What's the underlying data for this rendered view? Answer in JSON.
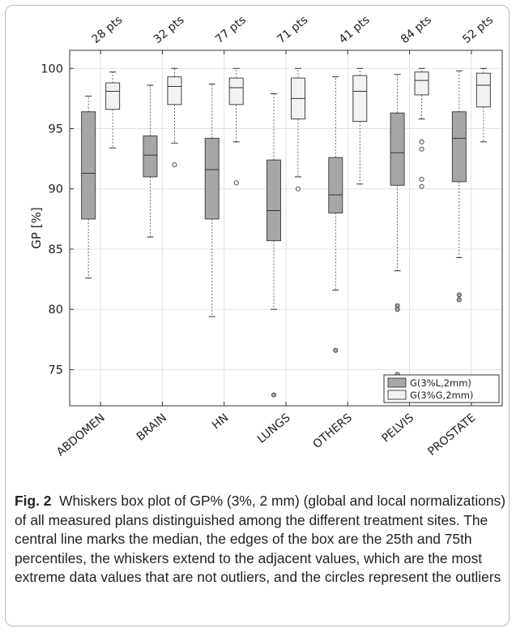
{
  "chart_data": {
    "type": "box",
    "ylabel": "GP [%]",
    "ylim": [
      72,
      101.5
    ],
    "yticks": [
      75,
      80,
      85,
      90,
      95,
      100
    ],
    "grid": true,
    "legend_position": "bottom-right",
    "categories": [
      "ABDOMEN",
      "BRAIN",
      "HN",
      "LUNGS",
      "OTHERS",
      "PELVIS",
      "PROSTATE"
    ],
    "counts": [
      "28 pts",
      "32 pts",
      "77 pts",
      "71 pts",
      "41 pts",
      "84 pts",
      "52 pts"
    ],
    "series": [
      {
        "name": "G(3%L,2mm)",
        "color": "#a6a6a6",
        "boxes": [
          {
            "whisker_low": 82.6,
            "q1": 87.5,
            "median": 91.3,
            "q3": 96.4,
            "whisker_high": 97.7,
            "outliers": []
          },
          {
            "whisker_low": 86.0,
            "q1": 91.0,
            "median": 92.8,
            "q3": 94.4,
            "whisker_high": 98.6,
            "outliers": []
          },
          {
            "whisker_low": 79.4,
            "q1": 87.5,
            "median": 91.6,
            "q3": 94.2,
            "whisker_high": 98.7,
            "outliers": []
          },
          {
            "whisker_low": 80.0,
            "q1": 85.7,
            "median": 88.2,
            "q3": 92.4,
            "whisker_high": 97.9,
            "outliers": [
              72.9
            ]
          },
          {
            "whisker_low": 81.6,
            "q1": 88.0,
            "median": 89.5,
            "q3": 92.6,
            "whisker_high": 99.3,
            "outliers": [
              76.6
            ]
          },
          {
            "whisker_low": 83.2,
            "q1": 90.3,
            "median": 93.0,
            "q3": 96.3,
            "whisker_high": 99.5,
            "outliers": [
              80.3,
              80.0,
              74.6
            ]
          },
          {
            "whisker_low": 84.3,
            "q1": 90.6,
            "median": 94.2,
            "q3": 96.4,
            "whisker_high": 99.8,
            "outliers": [
              81.2,
              80.8
            ]
          }
        ]
      },
      {
        "name": "G(3%G,2mm)",
        "color": "#f2f2f2",
        "boxes": [
          {
            "whisker_low": 93.4,
            "q1": 96.6,
            "median": 98.1,
            "q3": 98.8,
            "whisker_high": 99.7,
            "outliers": []
          },
          {
            "whisker_low": 93.8,
            "q1": 97.0,
            "median": 98.5,
            "q3": 99.3,
            "whisker_high": 100.0,
            "outliers": [
              92.0
            ]
          },
          {
            "whisker_low": 93.9,
            "q1": 97.0,
            "median": 98.4,
            "q3": 99.2,
            "whisker_high": 100.0,
            "outliers": [
              90.5
            ]
          },
          {
            "whisker_low": 91.0,
            "q1": 95.8,
            "median": 97.5,
            "q3": 99.2,
            "whisker_high": 100.0,
            "outliers": [
              90.0
            ]
          },
          {
            "whisker_low": 90.4,
            "q1": 95.6,
            "median": 98.1,
            "q3": 99.4,
            "whisker_high": 100.0,
            "outliers": []
          },
          {
            "whisker_low": 95.8,
            "q1": 97.8,
            "median": 99.0,
            "q3": 99.7,
            "whisker_high": 100.0,
            "outliers": [
              93.9,
              93.3,
              90.8,
              90.2
            ]
          },
          {
            "whisker_low": 93.9,
            "q1": 96.8,
            "median": 98.6,
            "q3": 99.6,
            "whisker_high": 100.0,
            "outliers": []
          }
        ]
      }
    ]
  },
  "caption": {
    "label": "Fig. 2",
    "text": "Whiskers box plot of GP% (3%, 2 mm) (global and local normalizations) of all measured plans distinguished among the different treatment sites. The central line marks the median, the edges of the box are the 25th and 75th percentiles, the whiskers extend to the adjacent values, which are the most extreme data values that are not outliers, and the circles represent the outliers"
  }
}
